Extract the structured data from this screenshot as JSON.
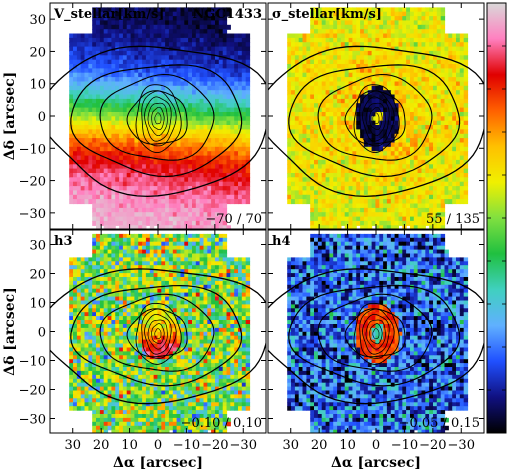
{
  "figure": {
    "galaxy": "NGC1433",
    "colorbar_colors": [
      "#d9d9d9",
      "#ff80c0",
      "#e00000",
      "#ff6000",
      "#ffc000",
      "#f0f000",
      "#80e040",
      "#20c040",
      "#40d0c0",
      "#60b0ff",
      "#2050ff",
      "#101080",
      "#000000"
    ]
  },
  "chart_data": [
    {
      "type": "heatmap",
      "title": "V_stellar[km/s]",
      "annotation": "NGC1433",
      "range_label": "−70 / 70",
      "clim": [
        -70,
        70
      ],
      "xlabel": "",
      "ylabel": "Δδ [arcsec]",
      "xlim": [
        38,
        -38
      ],
      "ylim": [
        -35,
        35
      ],
      "xticks": [
        30,
        20,
        10,
        0,
        -10,
        -20,
        -30
      ],
      "yticks": [
        30,
        20,
        10,
        0,
        -10,
        -20,
        -30
      ],
      "pattern": "velocity"
    },
    {
      "type": "heatmap",
      "title": "σ_stellar[km/s]",
      "range_label": "55 / 135",
      "clim": [
        55,
        135
      ],
      "xlabel": "",
      "ylabel": "",
      "xlim": [
        38,
        -38
      ],
      "ylim": [
        -35,
        35
      ],
      "xticks": [
        30,
        20,
        10,
        0,
        -10,
        -20,
        -30
      ],
      "yticks": [
        30,
        20,
        10,
        0,
        -10,
        -20,
        -30
      ],
      "pattern": "dispersion"
    },
    {
      "type": "heatmap",
      "title": "h3",
      "range_label": "−0.10 / 0.10",
      "clim": [
        -0.1,
        0.1
      ],
      "xlabel": "Δα [arcsec]",
      "ylabel": "Δδ [arcsec]",
      "xlim": [
        38,
        -38
      ],
      "ylim": [
        -35,
        35
      ],
      "xticks": [
        30,
        20,
        10,
        0,
        -10,
        -20,
        -30
      ],
      "xticklabels": [
        "30",
        "20",
        "10",
        "0",
        "−10",
        "−20",
        "−30"
      ],
      "yticks": [
        30,
        20,
        10,
        0,
        -10,
        -20,
        -30
      ],
      "pattern": "h3"
    },
    {
      "type": "heatmap",
      "title": "h4",
      "range_label": "−0.05 / 0.15",
      "clim": [
        -0.05,
        0.15
      ],
      "xlabel": "Δα [arcsec]",
      "ylabel": "",
      "xlim": [
        38,
        -38
      ],
      "ylim": [
        -35,
        35
      ],
      "xticks": [
        30,
        20,
        10,
        0,
        -10,
        -20,
        -30
      ],
      "xticklabels": [
        "30",
        "20",
        "10",
        "0",
        "−10",
        "−20",
        "−30"
      ],
      "yticks": [
        30,
        20,
        10,
        0,
        -10,
        -20,
        -30
      ],
      "pattern": "h4"
    }
  ]
}
